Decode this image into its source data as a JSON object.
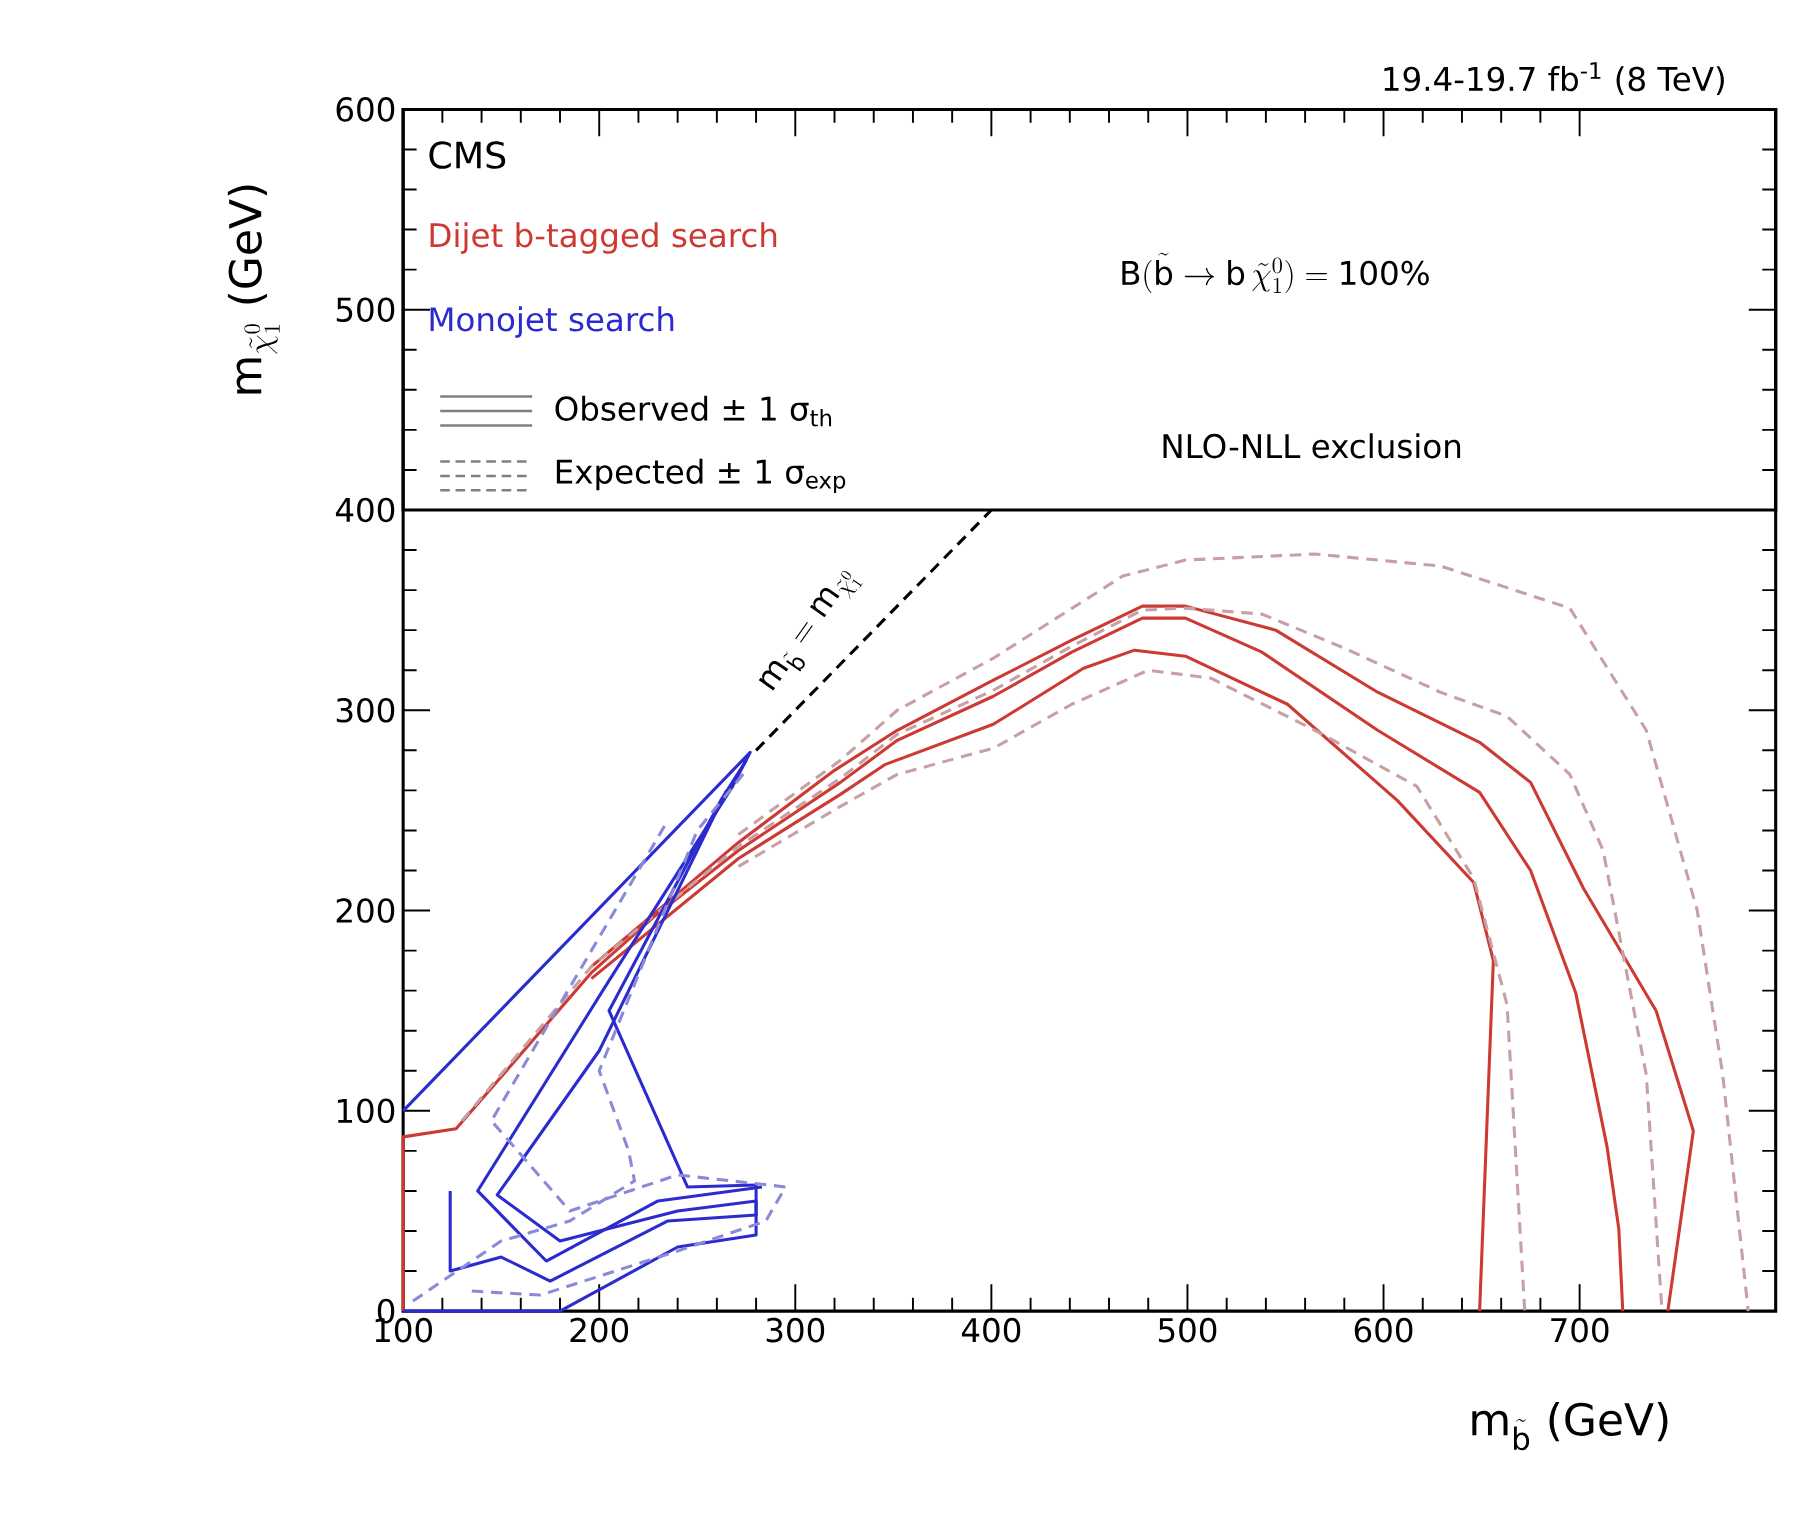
{
  "chart_data": {
    "type": "line",
    "xlabel": "\\text{m}_{\\tilde{\\text{b}}}\\ \\text{(GeV)}",
    "ylabel": "\\text{m}_{\\tilde{\\chi}^{0}_{1}}\\ \\text{(GeV)}",
    "xlim": [
      100,
      800
    ],
    "ylim": [
      0,
      600
    ],
    "xticks": [
      100,
      200,
      300,
      400,
      500,
      600,
      700
    ],
    "yticks": [
      0,
      100,
      200,
      300,
      400,
      500,
      600
    ],
    "series": [
      {
        "color": "#cc3a33",
        "line_style": "solid",
        "x": [
          100,
          100,
          127,
          196,
          228,
          271,
          323,
          352,
          401,
          441,
          477,
          499,
          538,
          597,
          649,
          675,
          698,
          714,
          720,
          722
        ],
        "values": [
          0,
          87,
          91,
          169,
          197,
          230,
          264,
          285,
          307,
          329,
          346,
          346,
          329,
          290,
          259,
          220,
          159,
          82,
          41,
          0
        ]
      },
      {
        "color": "#cc3a33",
        "line_style": "solid",
        "x": [
          196,
          271,
          320,
          352,
          401,
          441,
          477,
          499,
          545,
          597,
          649,
          675,
          702,
          739,
          758,
          745
        ],
        "values": [
          172,
          234,
          270,
          290,
          315,
          335,
          352,
          352,
          340,
          309,
          284,
          264,
          211,
          150,
          90,
          0
        ]
      },
      {
        "color": "#cc3a33",
        "line_style": "solid",
        "x": [
          196,
          271,
          323,
          346,
          401,
          447,
          473,
          499,
          551,
          607,
          646,
          656,
          649
        ],
        "values": [
          166,
          226,
          258,
          273,
          293,
          321,
          330,
          327,
          303,
          255,
          214,
          175,
          0
        ]
      },
      {
        "color": "#c8a0a4",
        "line_style": "dashed",
        "x": [
          130,
          196,
          271,
          323,
          352,
          401,
          441,
          477,
          499,
          538,
          580,
          629,
          663,
          695,
          712,
          734,
          742
        ],
        "values": [
          95,
          172,
          232,
          266,
          288,
          310,
          332,
          350,
          351,
          348,
          331,
          309,
          297,
          268,
          230,
          118,
          0
        ]
      },
      {
        "color": "#c8a0a4",
        "line_style": "dashed",
        "x": [
          271,
          323,
          352,
          401,
          467,
          499,
          565,
          629,
          695,
          734,
          760,
          773,
          786
        ],
        "values": [
          238,
          275,
          300,
          326,
          367,
          375,
          378,
          372,
          351,
          290,
          200,
          118,
          0
        ]
      },
      {
        "color": "#c8a0a4",
        "line_style": "dashed",
        "x": [
          271,
          323,
          352,
          401,
          441,
          480,
          512,
          565,
          617,
          646,
          663,
          672
        ],
        "values": [
          222,
          252,
          268,
          281,
          303,
          320,
          316,
          290,
          262,
          216,
          153,
          0
        ]
      },
      {
        "color": "#2b2bd0",
        "line_style": "solid",
        "x": [
          100,
          277,
          268,
          205,
          138,
          173,
          230,
          283
        ],
        "values": [
          100,
          279,
          262,
          165,
          60,
          25,
          55,
          62
        ]
      },
      {
        "color": "#2b2bd0",
        "line_style": "solid",
        "x": [
          124,
          124,
          150,
          175,
          235,
          280,
          280,
          245,
          205,
          262,
          275
        ],
        "values": [
          60,
          20,
          27,
          15,
          45,
          48,
          63,
          62,
          150,
          255,
          275
        ]
      },
      {
        "color": "#2b2bd0",
        "line_style": "solid",
        "x": [
          100,
          180,
          240,
          280,
          280,
          240,
          180,
          148,
          200,
          265
        ],
        "values": [
          0,
          0,
          32,
          38,
          55,
          50,
          35,
          58,
          130,
          260
        ]
      },
      {
        "color": "#8a8ad8",
        "line_style": "dashed",
        "x": [
          105,
          150,
          185,
          218,
          215,
          200,
          250,
          275
        ],
        "values": [
          5,
          35,
          45,
          65,
          80,
          120,
          240,
          270
        ]
      },
      {
        "color": "#8a8ad8",
        "line_style": "dashed",
        "x": [
          135,
          170,
          240,
          285,
          295,
          240,
          185,
          145,
          235
        ],
        "values": [
          10,
          8,
          30,
          45,
          62,
          68,
          50,
          95,
          245
        ]
      },
      {
        "color": "#000000",
        "line_style": "dashed",
        "x": [
          280,
          400
        ],
        "values": [
          280,
          400
        ]
      }
    ],
    "annotations": [
      "19.4-19.7 fb$^{-1}$ (8 TeV)",
      "CMS",
      "Dijet b-tagged search",
      "Monojet search",
      "Observed ± 1 σ$_{th}$",
      "Expected ± 1 σ$_{exp}$",
      "\\text{B}(\\tilde{\\text{b}} \\rightarrow \\text{b}\\,\\tilde{\\chi}^{0}_{1}) = \\text{100\\%}",
      "NLO-NLL exclusion",
      "\\text{m}_{\\tilde{\\text{b}}} = \\text{m}_{\\tilde{\\chi}^{0}_{1}}"
    ]
  }
}
